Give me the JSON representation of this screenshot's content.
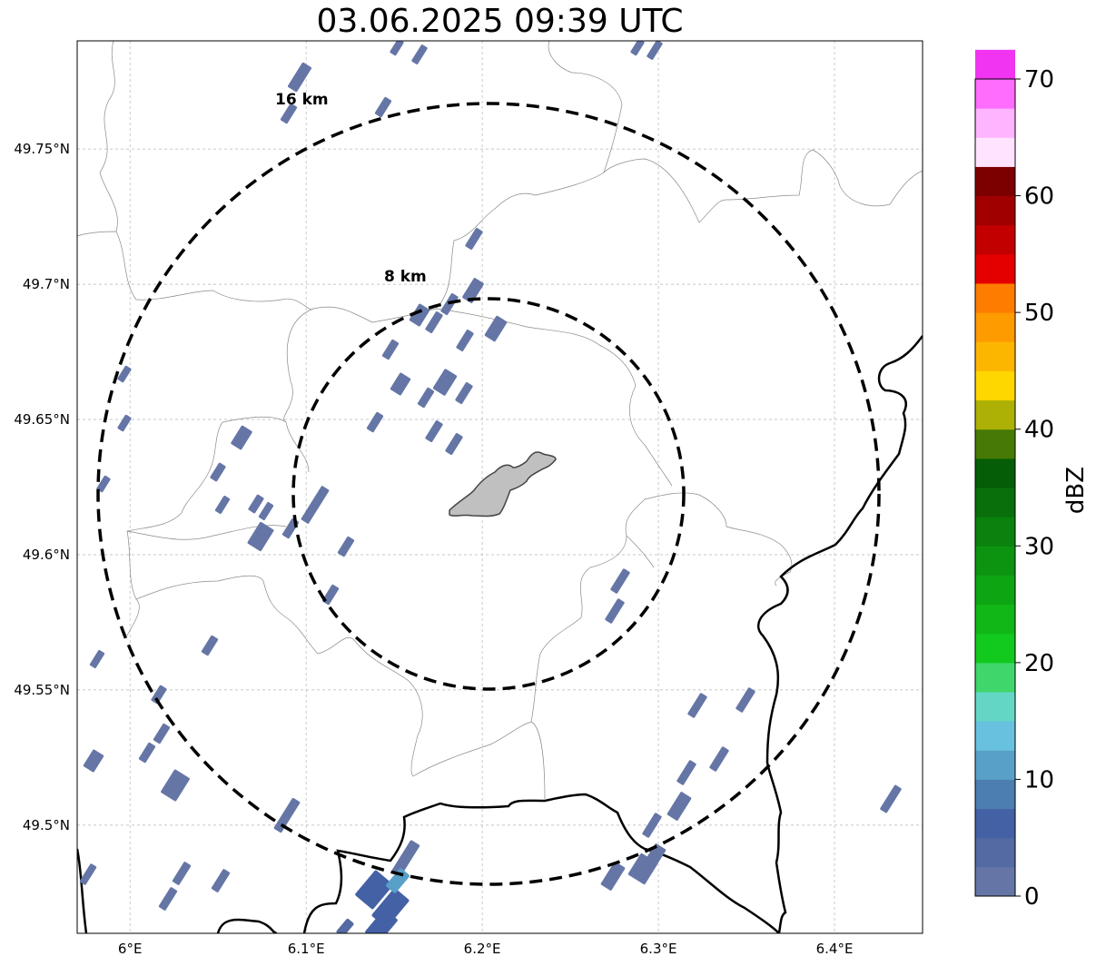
{
  "title": "03.06.2025 09:39 UTC",
  "map": {
    "lon_range": [
      5.97,
      6.45
    ],
    "lat_range": [
      49.46,
      49.79
    ],
    "gridlines": true,
    "x_ticks": [
      {
        "value": 6.0,
        "label": "6°E"
      },
      {
        "value": 6.1,
        "label": "6.1°E"
      },
      {
        "value": 6.2,
        "label": "6.2°E"
      },
      {
        "value": 6.3,
        "label": "6.3°E"
      },
      {
        "value": 6.4,
        "label": "6.4°E"
      }
    ],
    "y_ticks": [
      {
        "value": 49.5,
        "label": "49.5°N"
      },
      {
        "value": 49.55,
        "label": "49.55°N"
      },
      {
        "value": 49.6,
        "label": "49.6°N"
      },
      {
        "value": 49.65,
        "label": "49.65°N"
      },
      {
        "value": 49.7,
        "label": "49.7°N"
      },
      {
        "value": 49.75,
        "label": "49.75°N"
      }
    ],
    "range_rings": [
      {
        "label": "8 km",
        "radius_km": 8
      },
      {
        "label": "16 km",
        "radius_km": 16
      }
    ],
    "urban_area_color": "#c0c0c0",
    "boundary_color": "#000000"
  },
  "colorbar": {
    "label": "dBZ",
    "min": 0,
    "max": 70,
    "tick_labels": [
      "0",
      "10",
      "20",
      "30",
      "40",
      "50",
      "60",
      "70"
    ],
    "colors": [
      "#6576a6",
      "#536aa2",
      "#4461a5",
      "#4c7eb1",
      "#58a0c8",
      "#67c1df",
      "#64d6c6",
      "#3fd66c",
      "#12c91e",
      "#10b717",
      "#0ea513",
      "#0c9410",
      "#0a820d",
      "#086f0a",
      "#055d07",
      "#467a04",
      "#adb105",
      "#fed700",
      "#fdb600",
      "#fe9b00",
      "#fe7d00",
      "#e50000",
      "#c20000",
      "#a00000",
      "#7d0000",
      "#ffe3ff",
      "#ffb4ff",
      "#ff6dff",
      "#f034f1"
    ]
  }
}
